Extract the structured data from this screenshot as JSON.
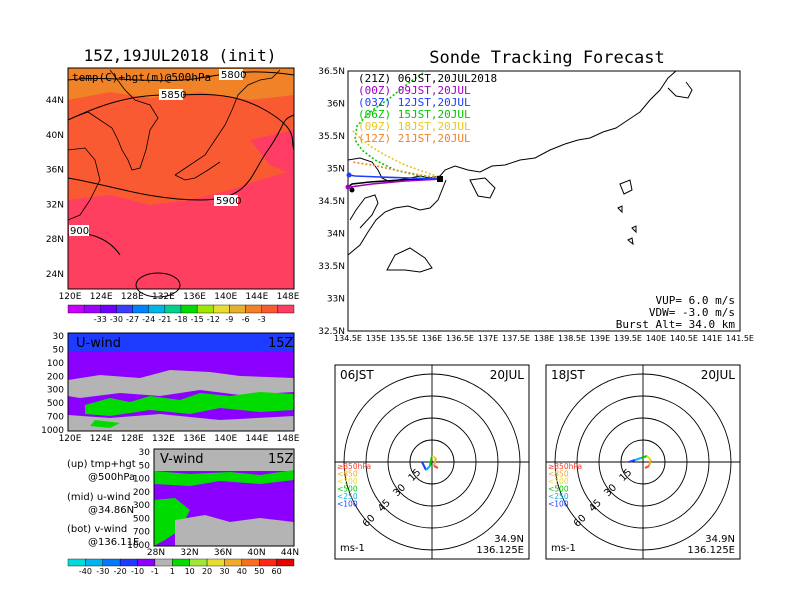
{
  "left": {
    "map_title": "15Z,19JUL2018 (init)",
    "map_label": "temp(C)+hgt(m)@500hPa",
    "map_lat_labels": [
      "44N",
      "40N",
      "36N",
      "32N",
      "28N",
      "24N"
    ],
    "map_lon_labels": [
      "120E",
      "124E",
      "128E",
      "132E",
      "136E",
      "140E",
      "144E",
      "148E"
    ],
    "contours": [
      "5800",
      "5850",
      "5900",
      "900"
    ],
    "temp_colorbar": {
      "labels": [
        "-33",
        "-30",
        "-27",
        "-24",
        "-21",
        "-18",
        "-15",
        "-12",
        "-9",
        "-6",
        "-3"
      ],
      "colors": [
        "#c800ff",
        "#a000ff",
        "#6e00ff",
        "#3c3cff",
        "#0082ff",
        "#00b4e6",
        "#00d28c",
        "#00dc00",
        "#a0e600",
        "#e6dc32",
        "#e6af2d",
        "#f08228",
        "#fa5a32",
        "#ff3c64"
      ]
    },
    "u_wind": {
      "label": "U-wind",
      "time": "15Z",
      "p_labels": [
        "30",
        "50",
        "100",
        "200",
        "300",
        "500",
        "700",
        "1000"
      ],
      "lon_labels": [
        "120E",
        "124E",
        "128E",
        "132E",
        "136E",
        "140E",
        "144E",
        "148E"
      ]
    },
    "v_wind": {
      "label": "V-wind",
      "time": "15Z",
      "p_labels": [
        "30",
        "50",
        "100",
        "200",
        "300",
        "500",
        "700",
        "1000"
      ],
      "lat_labels": [
        "28N",
        "32N",
        "36N",
        "40N",
        "44N"
      ]
    },
    "legend": {
      "up_title": "(up) tmp+hgt",
      "up_sub": "@500hPa",
      "mid_title": "(mid) u-wind",
      "mid_sub": "@34.86N",
      "bot_title": "(bot) v-wind",
      "bot_sub": "@136.11E"
    },
    "wind_colorbar": {
      "labels": [
        "-40",
        "-30",
        "-20",
        "-10",
        "-1",
        "1",
        "10",
        "20",
        "30",
        "40",
        "50",
        "60"
      ],
      "colors": [
        "#00dcdc",
        "#00b4f0",
        "#0078ff",
        "#1e3cff",
        "#8c00ff",
        "#b4b4b4",
        "#00dc00",
        "#a0e632",
        "#e6dc32",
        "#f0aa28",
        "#fa6e1e",
        "#ff2814",
        "#e60000"
      ]
    }
  },
  "track": {
    "title": "Sonde Tracking Forecast",
    "lat_labels": [
      "36.5N",
      "36N",
      "35.5N",
      "35N",
      "34.5N",
      "34N",
      "33.5N",
      "33N",
      "32.5N"
    ],
    "lon_labels": [
      "134.5E",
      "135E",
      "135.5E",
      "136E",
      "136.5E",
      "137E",
      "137.5E",
      "138E",
      "138.5E",
      "139E",
      "139.5E",
      "140E",
      "140.5E",
      "141E",
      "141.5E"
    ],
    "legend": [
      {
        "text": "(21Z) 06JST,20JUL2018",
        "color": "#000000"
      },
      {
        "text": "(00Z) 09JST,20JUL",
        "color": "#a000c8"
      },
      {
        "text": "(03Z) 12JST,20JUL",
        "color": "#1e3cff"
      },
      {
        "text": "(06Z) 15JST,20JUL",
        "color": "#00c800"
      },
      {
        "text": "(09Z) 18JST,20JUL",
        "color": "#e6c81e"
      },
      {
        "text": "(12Z) 21JST,20JUL",
        "color": "#f08228"
      }
    ],
    "vup": "VUP=  6.0 m/s",
    "vdw": "VDW= -3.0 m/s",
    "burst": "Burst Alt= 34.0 km"
  },
  "polar": [
    {
      "time": "06JST",
      "date": "20JUL",
      "lat": "34.9N",
      "lon": "136.125E",
      "unit": "ms-1",
      "rings": [
        "15",
        "30",
        "45",
        "60"
      ]
    },
    {
      "time": "18JST",
      "date": "20JUL",
      "lat": "34.9N",
      "lon": "136.125E",
      "unit": "ms-1",
      "rings": [
        "15",
        "30",
        "45",
        "60"
      ]
    }
  ],
  "polar_levels": [
    {
      "text": "≥850hPa",
      "color": "#ff3c28"
    },
    {
      "text": "<850",
      "color": "#f0aa28"
    },
    {
      "text": "<700",
      "color": "#e6dc32"
    },
    {
      "text": "<500",
      "color": "#00c800"
    },
    {
      "text": "<250",
      "color": "#00b4f0"
    },
    {
      "text": "<100",
      "color": "#1e3cff"
    }
  ]
}
